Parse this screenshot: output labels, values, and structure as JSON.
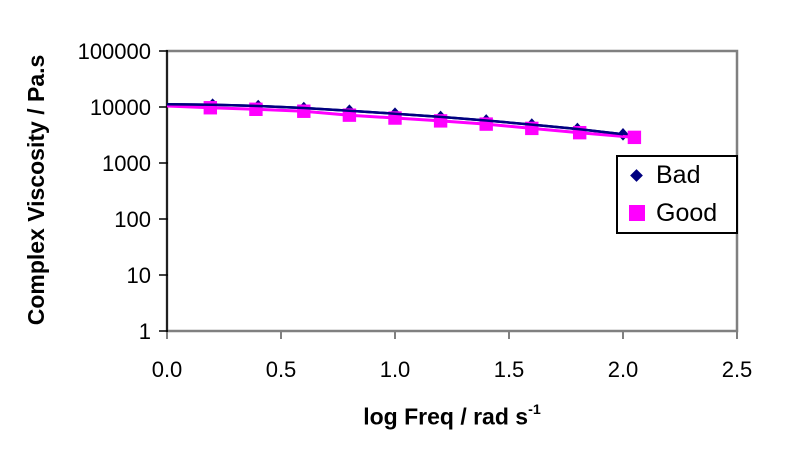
{
  "chart_data": {
    "type": "line",
    "title": "",
    "xlabel": "log Freq / rad s^-1",
    "xlabel_main": "log Freq / rad s",
    "xlabel_superscript": "-1",
    "ylabel": "Complex Viscosity / Pa.s",
    "y_scale": "log",
    "xlim": [
      0.0,
      2.5
    ],
    "ylim": [
      1,
      100000
    ],
    "grid": false,
    "legend_position": "right-middle",
    "x_ticks": {
      "values": [
        0.0,
        0.5,
        1.0,
        1.5,
        2.0,
        2.5
      ],
      "labels": [
        "0.0",
        "0.5",
        "1.0",
        "1.5",
        "2.0",
        "2.5"
      ]
    },
    "y_ticks": {
      "values": [
        1,
        10,
        100,
        1000,
        10000,
        100000
      ],
      "labels": [
        "1",
        "10",
        "100",
        "1000",
        "10000",
        "100000"
      ]
    },
    "series": [
      {
        "name": "Bad",
        "color": "#000080",
        "marker": "diamond",
        "line_start": {
          "x": 0.0,
          "y": 11200
        },
        "x": [
          0.2,
          0.4,
          0.6,
          0.8,
          1.0,
          1.2,
          1.4,
          1.6,
          1.8,
          2.0
        ],
        "y": [
          11000,
          10400,
          9600,
          8600,
          7600,
          6650,
          5750,
          4850,
          4050,
          3250
        ]
      },
      {
        "name": "Good",
        "color": "#FF00FF",
        "marker": "square",
        "line_start": {
          "x": 0.0,
          "y": 10400
        },
        "x": [
          0.19,
          0.39,
          0.6,
          0.8,
          1.0,
          1.2,
          1.4,
          1.6,
          1.81,
          2.05
        ],
        "y": [
          9700,
          9100,
          8400,
          7150,
          6350,
          5650,
          4950,
          4150,
          3480,
          2870
        ]
      }
    ],
    "colors": {
      "plot_border": "#808080",
      "y_axis_line": "#000000",
      "tick_text": "#000000",
      "background": "#FFFFFF"
    }
  },
  "legend": {
    "items": [
      {
        "label": "Bad"
      },
      {
        "label": "Good"
      }
    ]
  }
}
